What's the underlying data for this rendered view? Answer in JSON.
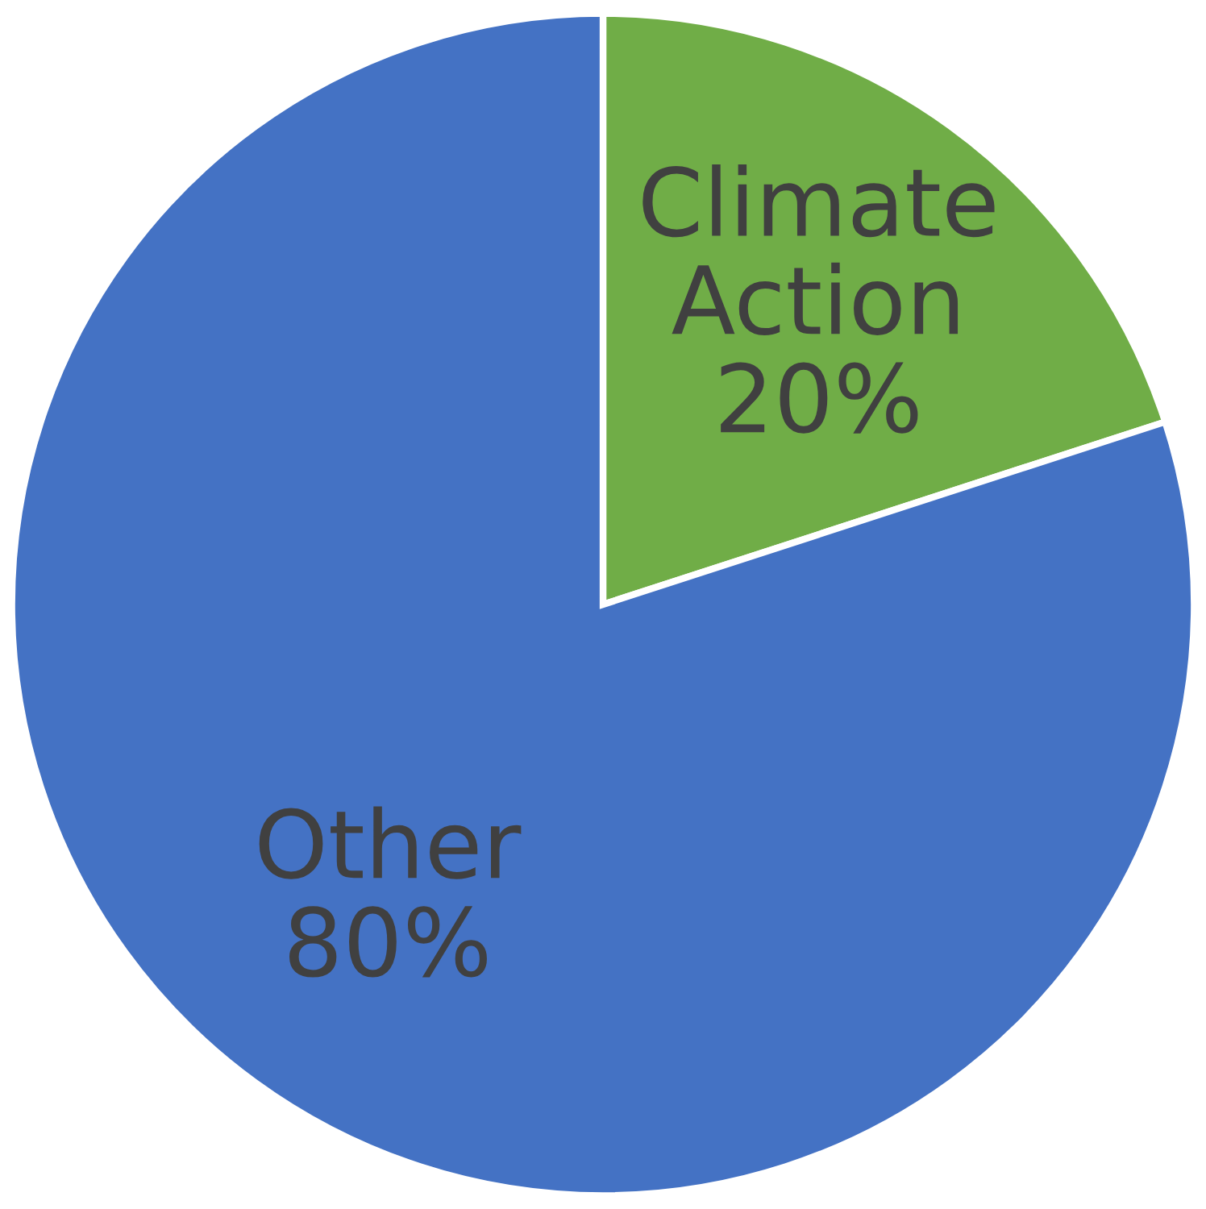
{
  "chart_data": {
    "type": "pie",
    "categories": [
      "Climate Action",
      "Other"
    ],
    "values": [
      20,
      80
    ],
    "colors": [
      "#70ad47",
      "#4472c4"
    ],
    "value_labels": [
      "20%",
      "80%"
    ],
    "legend": false
  }
}
